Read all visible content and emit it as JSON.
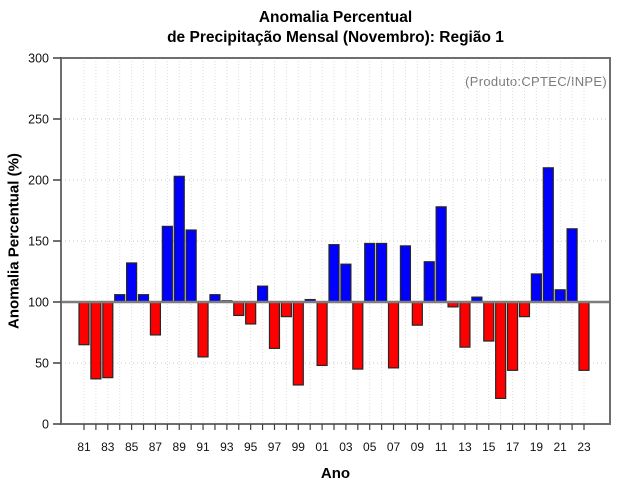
{
  "chart_data": {
    "type": "bar",
    "title_line1": "Anomalia Percentual",
    "title_line2": "de Precipitação Mensal (Novembro): Região 1",
    "title": "Anomalia Percentual de Precipitação Mensal (Novembro): Região 1",
    "annotation": "(Produto:CPTEC/INPE)",
    "xlabel": "Ano",
    "ylabel": "Anomalia Percentual (%)",
    "ylim": [
      0,
      300
    ],
    "yticks": [
      0,
      50,
      100,
      150,
      200,
      250,
      300
    ],
    "baseline": 100,
    "grid": true,
    "legend": false,
    "bar_color_above": "#0000ff",
    "bar_color_below": "#ff0000",
    "categories": [
      1981,
      1982,
      1983,
      1984,
      1985,
      1986,
      1987,
      1988,
      1989,
      1990,
      1991,
      1992,
      1993,
      1994,
      1995,
      1996,
      1997,
      1998,
      1999,
      2000,
      2001,
      2002,
      2003,
      2004,
      2005,
      2006,
      2007,
      2008,
      2009,
      2010,
      2011,
      2012,
      2013,
      2014,
      2015,
      2016,
      2017,
      2018,
      2019,
      2020,
      2021,
      2022,
      2023
    ],
    "xtick_labels": [
      "81",
      "83",
      "85",
      "87",
      "89",
      "91",
      "93",
      "95",
      "97",
      "99",
      "01",
      "03",
      "05",
      "07",
      "09",
      "11",
      "13",
      "15",
      "17",
      "19",
      "21",
      "23"
    ],
    "values": [
      65,
      37,
      38,
      106,
      132,
      106,
      73,
      162,
      203,
      159,
      55,
      106,
      101,
      89,
      82,
      113,
      62,
      88,
      32,
      102,
      48,
      147,
      131,
      45,
      148,
      148,
      46,
      146,
      81,
      133,
      178,
      96,
      63,
      104,
      68,
      21,
      44,
      88,
      123,
      210,
      110,
      160,
      44
    ]
  }
}
